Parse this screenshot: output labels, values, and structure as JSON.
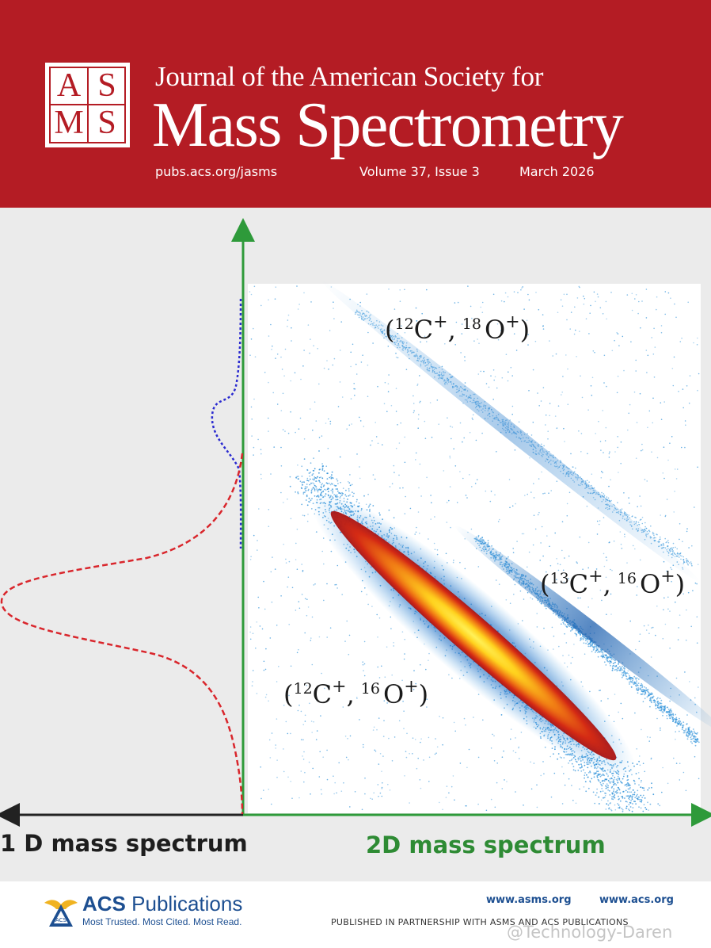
{
  "header": {
    "logo_letters": [
      "A",
      "S",
      "M",
      "S"
    ],
    "journal_subtitle": "Journal of the American Society for",
    "journal_title": "Mass Spectrometry",
    "url": "pubs.acs.org/jasms",
    "volume_issue": "Volume 37, Issue 3",
    "date": "March 2026"
  },
  "figure": {
    "caption_1d": "1 D mass spectrum",
    "caption_2d": "2D mass spectrum",
    "peak_labels": {
      "c12_o18": {
        "open": "(",
        "m1": "12",
        "e1": "C",
        "c1": "+",
        "sep": ",",
        "m2": "18",
        "e2": "O",
        "c2": "+",
        "close": ")"
      },
      "c13_o16": {
        "open": "(",
        "m1": "13",
        "e1": "C",
        "c1": "+",
        "sep": ",",
        "m2": "16",
        "e2": "O",
        "c2": "+",
        "close": ")"
      },
      "c12_o16": {
        "open": "(",
        "m1": "12",
        "e1": "C",
        "c1": "+",
        "sep": ",",
        "m2": "16",
        "e2": "O",
        "c2": "+",
        "close": ")"
      }
    },
    "colors": {
      "axis": "#2e9a3a",
      "axis_1d": "#222222",
      "curve_red": "#d9262c",
      "curve_blue": "#2a2ad0",
      "scatter": "#2a8fd8",
      "caption_2d": "#2e8b34"
    }
  },
  "footer": {
    "acs_word_a": "ACS",
    "acs_word_b": "Publications",
    "acs_tagline": "Most Trusted. Most Cited. Most Read.",
    "url_asms": "www.asms.org",
    "url_acs": "www.acs.org",
    "partnership": "PUBLISHED IN PARTNERSHIP WITH ASMS AND ACS PUBLICATIONS",
    "watermark": "@Technology-Daren"
  }
}
